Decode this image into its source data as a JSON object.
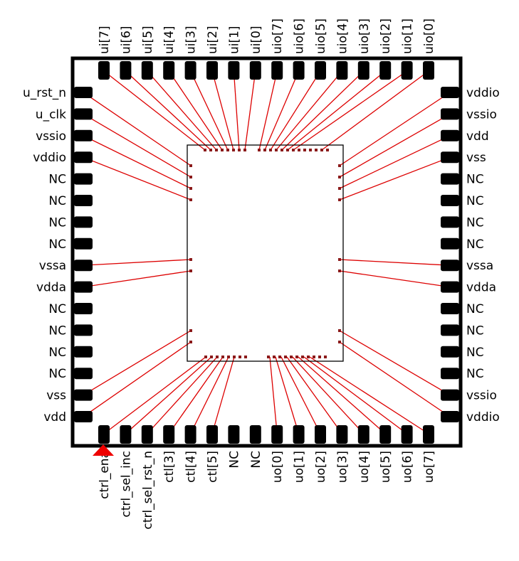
{
  "top_pins": [
    "ui[7]",
    "ui[6]",
    "ui[5]",
    "ui[4]",
    "ui[3]",
    "ui[2]",
    "ui[1]",
    "ui[0]",
    "uio[7]",
    "uio[6]",
    "uio[5]",
    "uio[4]",
    "uio[3]",
    "uio[2]",
    "uio[1]",
    "uio[0]"
  ],
  "bottom_pins": [
    "ctrl_ena",
    "ctrl_sel_inc",
    "ctrl_sel_rst_n",
    "ctl[3]",
    "ctl[4]",
    "ctl[5]",
    "NC",
    "NC",
    "uo[0]",
    "uo[1]",
    "uo[2]",
    "uo[3]",
    "uo[4]",
    "uo[5]",
    "uo[6]",
    "uo[7]"
  ],
  "left_pins": [
    "u_rst_n",
    "u_clk",
    "vssio",
    "vddio",
    "NC",
    "NC",
    "NC",
    "NC",
    "vssa",
    "vdda",
    "NC",
    "NC",
    "NC",
    "NC",
    "vss",
    "vdd"
  ],
  "right_pins": [
    "vddio",
    "vssio",
    "vdd",
    "vss",
    "NC",
    "NC",
    "NC",
    "NC",
    "vssa",
    "vdda",
    "NC",
    "NC",
    "NC",
    "NC",
    "vssio",
    "vddio"
  ],
  "colors": {
    "package": "#000000",
    "bond_wire": "#dd0000",
    "pin1_marker": "#ee0000",
    "die_pad": "#8b1a1a"
  }
}
